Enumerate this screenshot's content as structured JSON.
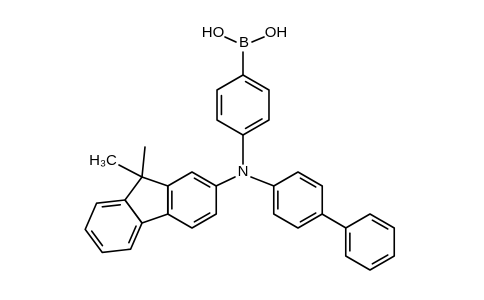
{
  "atoms": {
    "hydroxyl_left": "HO",
    "boron": "B",
    "hydroxyl_right": "OH",
    "nitrogen": "N",
    "methyl": "H₃C"
  }
}
